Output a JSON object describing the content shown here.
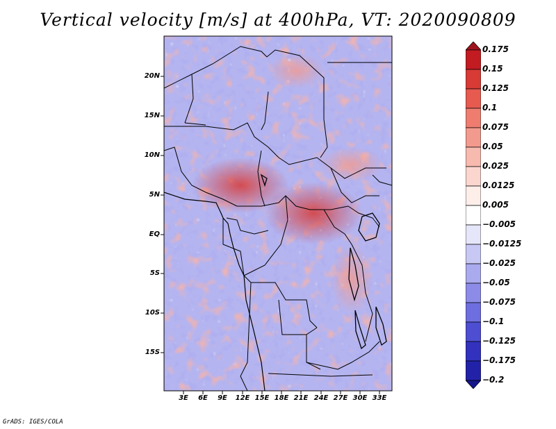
{
  "title": "Vertical velocity [m/s] at 400hPa, VT: 2020090809",
  "footer": "GrADS: IGES/COLA",
  "map": {
    "y_ticks": [
      "20N",
      "15N",
      "10N",
      "5N",
      "EQ",
      "5S",
      "10S",
      "15S"
    ],
    "x_ticks": [
      "3E",
      "6E",
      "9E",
      "12E",
      "15E",
      "18E",
      "21E",
      "24E",
      "27E",
      "30E",
      "33E"
    ]
  },
  "colorbar": {
    "labels": [
      "0.175",
      "0.15",
      "0.125",
      "0.1",
      "0.075",
      "0.05",
      "0.025",
      "0.0125",
      "0.005",
      "−0.005",
      "−0.0125",
      "−0.025",
      "−0.05",
      "−0.075",
      "−0.1",
      "−0.125",
      "−0.175",
      "−0.2"
    ],
    "colors": [
      "#a0141e",
      "#c21c22",
      "#d83a36",
      "#e65a50",
      "#ee7d70",
      "#f39a8e",
      "#f7baaf",
      "#fad6cf",
      "#fdeeea",
      "#ffffff",
      "#e6e6fa",
      "#c8c8f4",
      "#aaaaee",
      "#8c8ce8",
      "#6e6ee0",
      "#4e4ed2",
      "#3232be",
      "#2222a8",
      "#16168c"
    ]
  }
}
